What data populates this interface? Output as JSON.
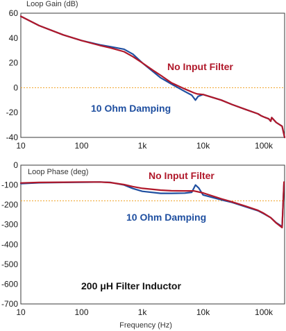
{
  "chart_data": [
    {
      "type": "line",
      "title": "Loop Gain (dB)",
      "x_scale": "log",
      "xlim": [
        10,
        220000
      ],
      "ylim": [
        -40,
        60
      ],
      "x_ticks": [
        10,
        100,
        1000,
        10000,
        100000
      ],
      "x_tick_labels": [
        "10",
        "100",
        "1k",
        "10k",
        "100k"
      ],
      "y_ticks": [
        60,
        40,
        20,
        0,
        -20,
        -40
      ],
      "y_tick_labels": [
        "60",
        "40",
        "20",
        "0",
        "-20",
        "-40"
      ],
      "reference_line": {
        "y": 0,
        "color": "#f0a020",
        "style": "dotted"
      },
      "annotations": [
        {
          "text": "No Input Filter",
          "color": "#b0182a"
        },
        {
          "text": "10 Ohm Damping",
          "color": "#1f4fa0"
        }
      ],
      "series": [
        {
          "color": "#1f4fa0",
          "points": [
            [
              10,
              57.5
            ],
            [
              20,
              50
            ],
            [
              50,
              42.5
            ],
            [
              100,
              38
            ],
            [
              200,
              34.5
            ],
            [
              300,
              33
            ],
            [
              500,
              31
            ],
            [
              700,
              27
            ],
            [
              1000,
              20
            ],
            [
              1500,
              13
            ],
            [
              2000,
              8
            ],
            [
              3000,
              3
            ],
            [
              5000,
              -3
            ],
            [
              6500,
              -6
            ],
            [
              7500,
              -10
            ],
            [
              8300,
              -7
            ],
            [
              10000,
              -5.5
            ],
            [
              20000,
              -10
            ],
            [
              30000,
              -13.5
            ],
            [
              50000,
              -17.5
            ],
            [
              80000,
              -21
            ],
            [
              90000,
              -22.5
            ],
            [
              100000,
              -23.5
            ],
            [
              120000,
              -25
            ],
            [
              130000,
              -27
            ],
            [
              135000,
              -24
            ],
            [
              160000,
              -28
            ],
            [
              200000,
              -31
            ],
            [
              220000,
              -40
            ]
          ]
        },
        {
          "color": "#b0182a",
          "points": [
            [
              10,
              57.5
            ],
            [
              20,
              50
            ],
            [
              50,
              42.5
            ],
            [
              100,
              38
            ],
            [
              200,
              34
            ],
            [
              300,
              32
            ],
            [
              500,
              29
            ],
            [
              700,
              25
            ],
            [
              1000,
              20
            ],
            [
              1500,
              14
            ],
            [
              2000,
              10
            ],
            [
              3000,
              4
            ],
            [
              5000,
              -1
            ],
            [
              7000,
              -4
            ],
            [
              8000,
              -5
            ],
            [
              10000,
              -5.5
            ],
            [
              20000,
              -10
            ],
            [
              30000,
              -13.5
            ],
            [
              50000,
              -17.5
            ],
            [
              80000,
              -21
            ],
            [
              90000,
              -22.5
            ],
            [
              100000,
              -23.5
            ],
            [
              120000,
              -25
            ],
            [
              130000,
              -27
            ],
            [
              135000,
              -24
            ],
            [
              160000,
              -28
            ],
            [
              200000,
              -31
            ],
            [
              220000,
              -40
            ]
          ]
        }
      ]
    },
    {
      "type": "line",
      "title": "Loop Phase (deg)",
      "xlabel": "Frequency (Hz)",
      "x_scale": "log",
      "xlim": [
        10,
        220000
      ],
      "ylim": [
        -700,
        0
      ],
      "x_ticks": [
        10,
        100,
        1000,
        10000,
        100000
      ],
      "x_tick_labels": [
        "10",
        "100",
        "1k",
        "10k",
        "100k"
      ],
      "y_ticks": [
        0,
        -100,
        -200,
        -300,
        -400,
        -500,
        -600,
        -700
      ],
      "y_tick_labels": [
        "0",
        "-100",
        "-200",
        "-300",
        "-400",
        "-500",
        "-600",
        "-700"
      ],
      "reference_line": {
        "y": -180,
        "color": "#f0a020",
        "style": "dotted"
      },
      "annotations": [
        {
          "text": "No Input Filter",
          "color": "#b0182a"
        },
        {
          "text": "10 Ohm Damping",
          "color": "#1f4fa0"
        },
        {
          "text": "200 μH Filter Inductor",
          "color": "#111111"
        }
      ],
      "series": [
        {
          "color": "#1f4fa0",
          "points": [
            [
              10,
              -93
            ],
            [
              20,
              -89
            ],
            [
              50,
              -87
            ],
            [
              100,
              -86
            ],
            [
              200,
              -85
            ],
            [
              300,
              -87
            ],
            [
              500,
              -100
            ],
            [
              700,
              -118
            ],
            [
              1000,
              -132
            ],
            [
              2000,
              -142
            ],
            [
              3000,
              -142
            ],
            [
              5000,
              -141
            ],
            [
              6500,
              -137
            ],
            [
              7500,
              -100
            ],
            [
              8500,
              -115
            ],
            [
              10000,
              -150
            ],
            [
              20000,
              -175
            ],
            [
              30000,
              -188
            ],
            [
              50000,
              -210
            ],
            [
              80000,
              -230
            ],
            [
              100000,
              -245
            ],
            [
              130000,
              -265
            ],
            [
              160000,
              -290
            ],
            [
              200000,
              -310
            ],
            [
              215000,
              -90
            ]
          ]
        },
        {
          "color": "#b0182a",
          "points": [
            [
              10,
              -90
            ],
            [
              20,
              -87
            ],
            [
              50,
              -86
            ],
            [
              100,
              -85
            ],
            [
              200,
              -85
            ],
            [
              300,
              -88
            ],
            [
              500,
              -98
            ],
            [
              700,
              -108
            ],
            [
              1000,
              -117
            ],
            [
              2000,
              -126
            ],
            [
              3000,
              -129
            ],
            [
              5000,
              -130
            ],
            [
              7000,
              -130
            ],
            [
              10000,
              -140
            ],
            [
              20000,
              -170
            ],
            [
              30000,
              -185
            ],
            [
              50000,
              -207
            ],
            [
              80000,
              -228
            ],
            [
              100000,
              -243
            ],
            [
              130000,
              -265
            ],
            [
              160000,
              -292
            ],
            [
              200000,
              -315
            ],
            [
              215000,
              -85
            ]
          ]
        }
      ]
    }
  ]
}
